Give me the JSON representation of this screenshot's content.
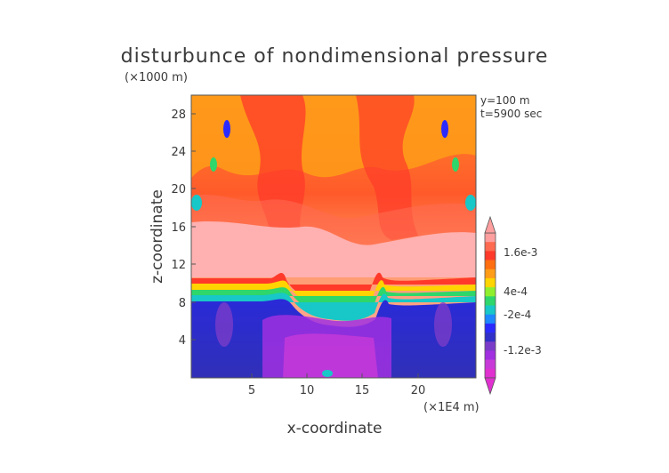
{
  "chart_data": {
    "type": "heatmap",
    "title": "disturbunce of nondimensional pressure",
    "y_unit": "(×1000 m)",
    "x_unit": "(×1E4 m)",
    "xlabel": "x-coordinate",
    "ylabel": "z-coordinate",
    "annotations": [
      "y=100 m",
      "t=5900 sec"
    ],
    "x_ticks": [
      "5",
      "10",
      "15",
      "20"
    ],
    "y_ticks": [
      "4",
      "8",
      "12",
      "16",
      "20",
      "24",
      "28"
    ],
    "xlim": [
      0,
      25
    ],
    "ylim": [
      0,
      30
    ],
    "colorbar_labels": [
      "1.6e-3",
      "4e-4",
      "-2e-4",
      "-1.2e-3"
    ],
    "colorbar_colors": [
      "#ff9e9e",
      "#ff6a50",
      "#ff3a2a",
      "#ff6e10",
      "#ff9c18",
      "#ffd400",
      "#8fef2e",
      "#2fd66a",
      "#18c7c7",
      "#1e88ff",
      "#2a2aff",
      "#3030c8",
      "#7a3cc8",
      "#a030e0",
      "#c83ad8",
      "#e030d0"
    ],
    "field_description_levels": {
      "lower_layer_z_below_10": "-1.2e-3 to -2e-4",
      "transition_z_10": "-2e-4 to 4e-4",
      "upper_layer_z_above_10": "4e-4 to 1.6e-3"
    }
  }
}
